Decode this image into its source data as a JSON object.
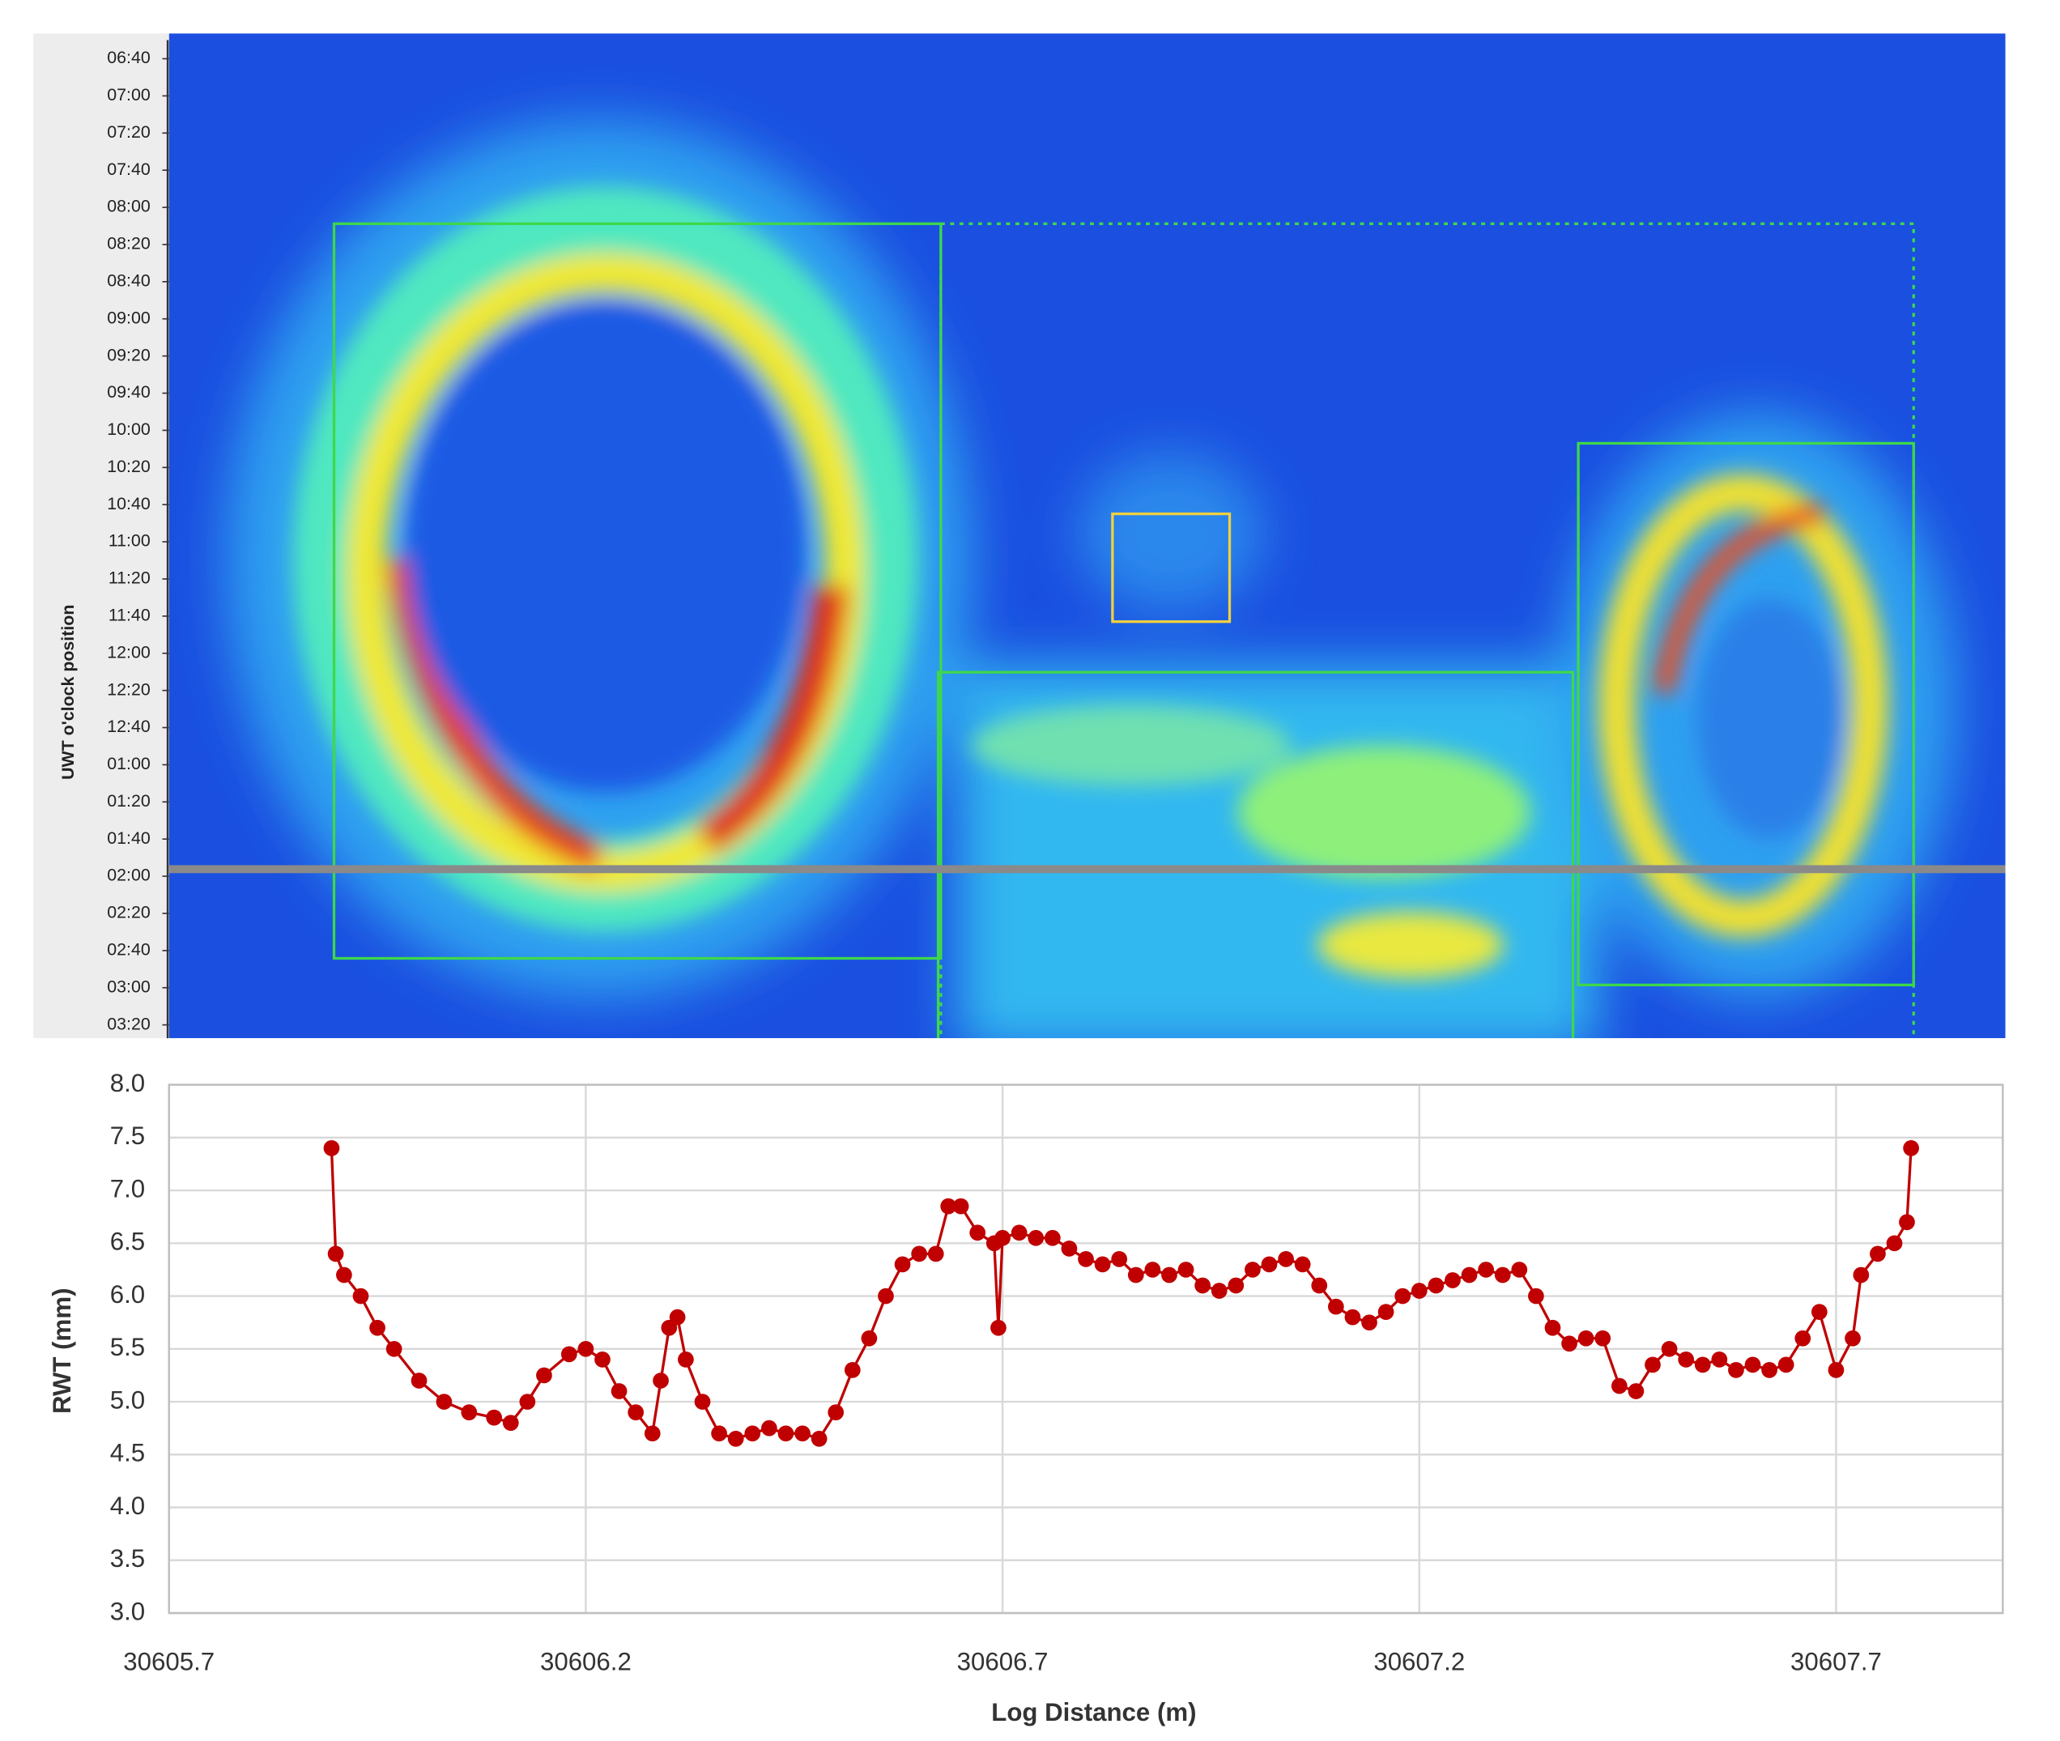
{
  "chart_data": [
    {
      "type": "heatmap",
      "ylabel": "UWT o'clock position",
      "y_categories": [
        "06:40",
        "07:00",
        "07:20",
        "07:40",
        "08:00",
        "08:20",
        "08:40",
        "09:00",
        "09:20",
        "09:40",
        "10:00",
        "10:20",
        "10:40",
        "11:00",
        "11:20",
        "11:40",
        "12:00",
        "12:20",
        "12:40",
        "01:00",
        "01:20",
        "01:40",
        "02:00",
        "02:20",
        "02:40",
        "03:00",
        "03:20"
      ]
    },
    {
      "type": "line",
      "xlabel": "Log Distance (m)",
      "ylabel": "RWT (mm)",
      "xlim": [
        30605.7,
        30607.9
      ],
      "xticks": [
        30605.7,
        30606.2,
        30606.7,
        30607.2,
        30607.7
      ],
      "ylim": [
        3,
        8
      ],
      "yticks": [
        {
          "value": 3,
          "label": "3.0"
        },
        3.5,
        {
          "value": 4,
          "label": "4.0"
        },
        4.5,
        {
          "value": 5,
          "label": "5.0"
        },
        5.5,
        {
          "value": 6,
          "label": "6.0"
        },
        6.5,
        {
          "value": 7,
          "label": "7.0"
        },
        7.5,
        {
          "value": 8,
          "label": "8.0"
        }
      ],
      "grid": true,
      "series": [
        {
          "name": "RWT",
          "color": "#c00000",
          "x": [
            30605.895,
            30605.9,
            30605.91,
            30605.93,
            30605.95,
            30605.97,
            30606.0,
            30606.03,
            30606.06,
            30606.09,
            30606.11,
            30606.13,
            30606.15,
            30606.18,
            30606.2,
            30606.22,
            30606.24,
            30606.26,
            30606.28,
            30606.29,
            30606.3,
            30606.31,
            30606.32,
            30606.34,
            30606.36,
            30606.38,
            30606.4,
            30606.42,
            30606.44,
            30606.46,
            30606.48,
            30606.5,
            30606.52,
            30606.54,
            30606.56,
            30606.58,
            30606.6,
            30606.62,
            30606.635,
            30606.65,
            30606.67,
            30606.69,
            30606.695,
            30606.7,
            30606.72,
            30606.74,
            30606.76,
            30606.78,
            30606.8,
            30606.82,
            30606.84,
            30606.86,
            30606.88,
            30606.9,
            30606.92,
            30606.94,
            30606.96,
            30606.98,
            30607.0,
            30607.02,
            30607.04,
            30607.06,
            30607.08,
            30607.1,
            30607.12,
            30607.14,
            30607.16,
            30607.18,
            30607.2,
            30607.22,
            30607.24,
            30607.26,
            30607.28,
            30607.3,
            30607.32,
            30607.34,
            30607.36,
            30607.38,
            30607.4,
            30607.42,
            30607.44,
            30607.46,
            30607.48,
            30607.5,
            30607.52,
            30607.54,
            30607.56,
            30607.58,
            30607.6,
            30607.62,
            30607.64,
            30607.66,
            30607.68,
            30607.7,
            30607.72,
            30607.73,
            30607.75,
            30607.77,
            30607.785,
            30607.79
          ],
          "values": [
            7.4,
            6.4,
            6.2,
            6.0,
            5.7,
            5.5,
            5.2,
            5.0,
            4.9,
            4.85,
            4.8,
            5.0,
            5.25,
            5.45,
            5.5,
            5.4,
            5.1,
            4.9,
            4.7,
            5.2,
            5.7,
            5.8,
            5.4,
            5.0,
            4.7,
            4.65,
            4.7,
            4.75,
            4.7,
            4.7,
            4.65,
            4.9,
            5.3,
            5.6,
            6.0,
            6.3,
            6.4,
            6.4,
            6.85,
            6.85,
            6.6,
            6.5,
            5.7,
            6.55,
            6.6,
            6.55,
            6.55,
            6.45,
            6.35,
            6.3,
            6.35,
            6.2,
            6.25,
            6.2,
            6.25,
            6.1,
            6.05,
            6.1,
            6.25,
            6.3,
            6.35,
            6.3,
            6.1,
            5.9,
            5.8,
            5.75,
            5.85,
            6.0,
            6.05,
            6.1,
            6.15,
            6.2,
            6.25,
            6.2,
            6.25,
            6.0,
            5.7,
            5.55,
            5.6,
            5.6,
            5.15,
            5.1,
            5.35,
            5.5,
            5.4,
            5.35,
            5.4,
            5.3,
            5.35,
            5.3,
            5.35,
            5.6,
            5.85,
            5.3,
            5.6,
            6.2,
            6.4,
            6.5,
            6.7,
            7.4
          ]
        }
      ]
    }
  ]
}
